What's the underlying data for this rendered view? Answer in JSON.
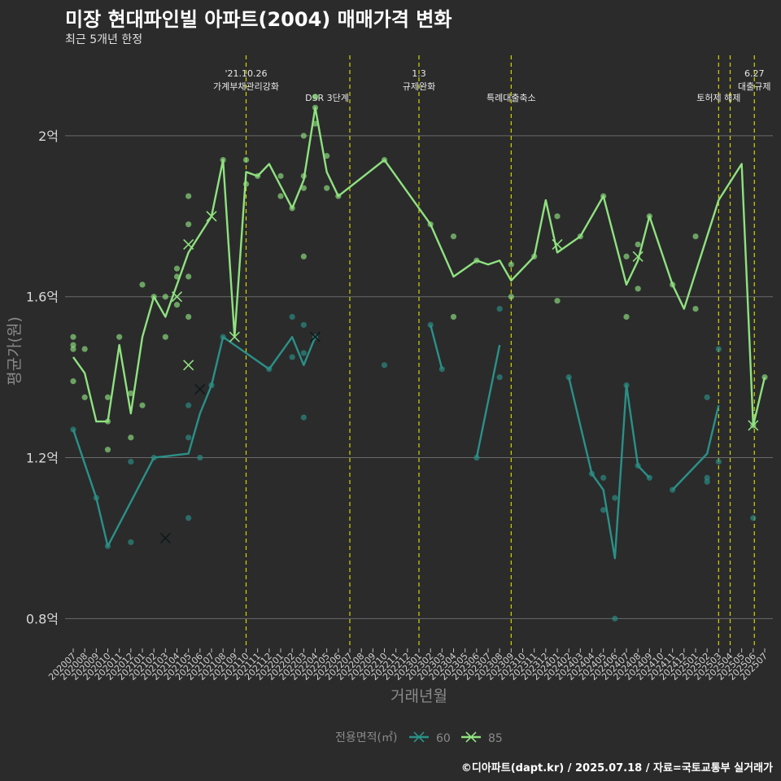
{
  "title": "미장 현대파인빌 아파트(2004) 매매가격 변화",
  "subtitle": "최근 5개년 한정",
  "caption": "©디아파트(dapt.kr) / 2025.07.18 / 자료=국토교통부 실거래가",
  "colors": {
    "background": "#2b2b2c",
    "grid": "#6a6a6a",
    "event_line": "#d4d400",
    "s60": "#2a9187",
    "s85": "#8fe27f"
  },
  "chart_data": {
    "type": "line",
    "xlabel": "거래년월",
    "ylabel": "평균가(원)",
    "x": [
      "202007",
      "202008",
      "202009",
      "202010",
      "202011",
      "202012",
      "202101",
      "202102",
      "202103",
      "202104",
      "202105",
      "202106",
      "202107",
      "202108",
      "202109",
      "202110",
      "202111",
      "202112",
      "202201",
      "202202",
      "202203",
      "202204",
      "202205",
      "202206",
      "202207",
      "202208",
      "202209",
      "202210",
      "202211",
      "202212",
      "202301",
      "202302",
      "202303",
      "202304",
      "202305",
      "202306",
      "202307",
      "202308",
      "202309",
      "202310",
      "202311",
      "202312",
      "202401",
      "202402",
      "202403",
      "202404",
      "202405",
      "202406",
      "202407",
      "202408",
      "202409",
      "202410",
      "202411",
      "202412",
      "202501",
      "202502",
      "202503",
      "202504",
      "202505",
      "202506",
      "202507"
    ],
    "yticks": [
      0.8,
      1.2,
      1.6,
      2.0
    ],
    "ytick_labels": [
      "0.8억",
      "1.2억",
      "1.6억",
      "2억"
    ],
    "ylim": [
      0.73,
      2.2
    ],
    "grid": true,
    "legend": {
      "title": "전용면적(㎡)",
      "position": "bottom"
    },
    "series": [
      {
        "name": "60",
        "color": "#2a9187",
        "line": [
          [
            0,
            1.27
          ],
          [
            2,
            1.1
          ],
          [
            3,
            0.98
          ],
          [
            7,
            1.2
          ],
          [
            10,
            1.21
          ],
          [
            11,
            1.31
          ],
          [
            12,
            1.38
          ],
          [
            13,
            1.5
          ],
          [
            17,
            1.42
          ],
          [
            19,
            1.5
          ],
          [
            20,
            1.43
          ],
          [
            21,
            1.5
          ],
          null,
          [
            31,
            1.53
          ],
          [
            32,
            1.42
          ],
          null,
          [
            35,
            1.2
          ],
          [
            37,
            1.48
          ],
          null,
          [
            43,
            1.4
          ],
          [
            45,
            1.16
          ],
          [
            46,
            1.12
          ],
          [
            47,
            0.95
          ],
          [
            48,
            1.38
          ],
          [
            49,
            1.18
          ],
          [
            50,
            1.15
          ],
          null,
          [
            52,
            1.12
          ],
          [
            55,
            1.21
          ],
          [
            56,
            1.33
          ]
        ],
        "points": [
          [
            0,
            1.27
          ],
          [
            2,
            1.1
          ],
          [
            3,
            0.98
          ],
          [
            5,
            1.19
          ],
          [
            5,
            0.99
          ],
          [
            7,
            1.2
          ],
          [
            10,
            1.33
          ],
          [
            10,
            1.25
          ],
          [
            10,
            1.05
          ],
          [
            11,
            1.2
          ],
          [
            12,
            1.38
          ],
          [
            13,
            1.5
          ],
          [
            17,
            1.42
          ],
          [
            19,
            1.55
          ],
          [
            19,
            1.45
          ],
          [
            20,
            1.53
          ],
          [
            20,
            1.46
          ],
          [
            20,
            1.3
          ],
          [
            21,
            1.5
          ],
          [
            27,
            1.43
          ],
          [
            31,
            1.53
          ],
          [
            32,
            1.42
          ],
          [
            35,
            1.2
          ],
          [
            37,
            1.57
          ],
          [
            37,
            1.4
          ],
          [
            43,
            1.4
          ],
          [
            45,
            1.16
          ],
          [
            46,
            1.15
          ],
          [
            46,
            1.07
          ],
          [
            47,
            1.1
          ],
          [
            47,
            0.8
          ],
          [
            48,
            1.38
          ],
          [
            49,
            1.18
          ],
          [
            50,
            1.15
          ],
          [
            52,
            1.12
          ],
          [
            55,
            1.35
          ],
          [
            55,
            1.15
          ],
          [
            55,
            1.14
          ],
          [
            56,
            1.47
          ],
          [
            56,
            1.19
          ],
          [
            59,
            1.05
          ]
        ],
        "cross_points": [
          [
            8,
            1.0
          ],
          [
            11,
            1.37
          ],
          [
            21,
            1.5
          ]
        ]
      },
      {
        "name": "85",
        "color": "#8fe27f",
        "line": [
          [
            0,
            1.45
          ],
          [
            1,
            1.41
          ],
          [
            2,
            1.29
          ],
          [
            3,
            1.29
          ],
          [
            4,
            1.48
          ],
          [
            5,
            1.31
          ],
          [
            6,
            1.5
          ],
          [
            7,
            1.6
          ],
          [
            8,
            1.55
          ],
          [
            9,
            1.63
          ],
          [
            10,
            1.71
          ],
          [
            12,
            1.8
          ],
          [
            13,
            1.94
          ],
          [
            14,
            1.5
          ],
          [
            15,
            1.91
          ],
          [
            16,
            1.9
          ],
          [
            17,
            1.93
          ],
          [
            19,
            1.82
          ],
          [
            20,
            1.89
          ],
          [
            21,
            2.07
          ],
          [
            22,
            1.91
          ],
          [
            23,
            1.85
          ],
          [
            27,
            1.94
          ],
          [
            31,
            1.78
          ],
          [
            33,
            1.65
          ],
          [
            35,
            1.69
          ],
          [
            36,
            1.68
          ],
          [
            37,
            1.69
          ],
          [
            38,
            1.64
          ],
          [
            40,
            1.7
          ],
          [
            41,
            1.84
          ],
          [
            42,
            1.71
          ],
          [
            44,
            1.75
          ],
          [
            46,
            1.85
          ],
          [
            48,
            1.63
          ],
          [
            49,
            1.69
          ],
          [
            50,
            1.8
          ],
          [
            52,
            1.63
          ],
          [
            53,
            1.57
          ],
          [
            56,
            1.84
          ],
          [
            58,
            1.93
          ],
          [
            59,
            1.28
          ],
          [
            60,
            1.4
          ]
        ],
        "points": [
          [
            0,
            1.5
          ],
          [
            0,
            1.48
          ],
          [
            0,
            1.47
          ],
          [
            0,
            1.39
          ],
          [
            1,
            1.35
          ],
          [
            1,
            1.47
          ],
          [
            3,
            1.22
          ],
          [
            3,
            1.29
          ],
          [
            3,
            1.35
          ],
          [
            4,
            1.5
          ],
          [
            5,
            1.36
          ],
          [
            5,
            1.25
          ],
          [
            6,
            1.33
          ],
          [
            6,
            1.63
          ],
          [
            7,
            1.6
          ],
          [
            8,
            1.5
          ],
          [
            8,
            1.6
          ],
          [
            9,
            1.67
          ],
          [
            9,
            1.65
          ],
          [
            9,
            1.58
          ],
          [
            10,
            1.85
          ],
          [
            10,
            1.78
          ],
          [
            10,
            1.65
          ],
          [
            10,
            1.55
          ],
          [
            13,
            1.94
          ],
          [
            15,
            1.94
          ],
          [
            15,
            1.88
          ],
          [
            16,
            1.9
          ],
          [
            18,
            1.9
          ],
          [
            18,
            1.85
          ],
          [
            19,
            1.82
          ],
          [
            20,
            2.0
          ],
          [
            20,
            1.9
          ],
          [
            20,
            1.87
          ],
          [
            20,
            1.7
          ],
          [
            21,
            2.07
          ],
          [
            21,
            2.03
          ],
          [
            22,
            1.95
          ],
          [
            22,
            1.87
          ],
          [
            23,
            1.85
          ],
          [
            27,
            1.94
          ],
          [
            31,
            1.78
          ],
          [
            33,
            1.75
          ],
          [
            33,
            1.55
          ],
          [
            35,
            1.69
          ],
          [
            38,
            1.68
          ],
          [
            38,
            1.6
          ],
          [
            40,
            1.7
          ],
          [
            42,
            1.8
          ],
          [
            42,
            1.59
          ],
          [
            44,
            1.75
          ],
          [
            46,
            1.85
          ],
          [
            48,
            1.7
          ],
          [
            48,
            1.55
          ],
          [
            49,
            1.73
          ],
          [
            49,
            1.62
          ],
          [
            50,
            1.8
          ],
          [
            52,
            1.63
          ],
          [
            54,
            1.75
          ],
          [
            54,
            1.57
          ],
          [
            59,
            1.28
          ],
          [
            60,
            1.4
          ]
        ],
        "cross_points": [
          [
            9,
            1.6
          ],
          [
            10,
            1.73
          ],
          [
            10,
            1.43
          ],
          [
            12,
            1.8
          ],
          [
            14,
            1.5
          ],
          [
            42,
            1.73
          ],
          [
            49,
            1.7
          ],
          [
            59,
            1.28
          ]
        ]
      }
    ],
    "events": [
      {
        "at": 15,
        "label": "'21.10.26\n가계부채관리강화"
      },
      {
        "at": 24,
        "label": "DSR 3단계"
      },
      {
        "at": 30,
        "label": "1.3\n규제완화"
      },
      {
        "at": 38,
        "label": "특례대출축소"
      },
      {
        "at": 56,
        "label": "토허제 해제"
      },
      {
        "at": 57,
        "label": ""
      },
      {
        "at": 59.1,
        "label": "6.27\n대출규제"
      }
    ]
  }
}
